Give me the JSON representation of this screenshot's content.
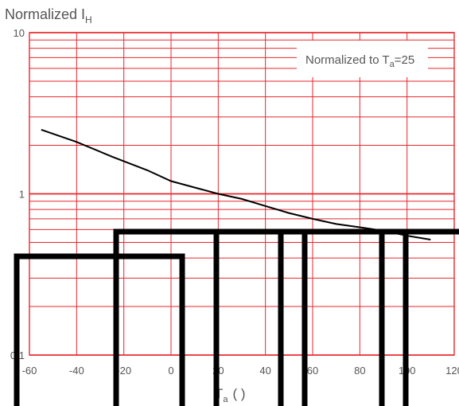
{
  "chart_data": {
    "type": "line",
    "title": "",
    "ylabel": {
      "main": "Normalized I",
      "sub": "H"
    },
    "xlabel": {
      "main": "T",
      "sub": "a",
      "rest": "(   )"
    },
    "x_ticks": [
      {
        "value": -60,
        "label": "-60"
      },
      {
        "value": -40,
        "label": "-40"
      },
      {
        "value": -20,
        "label": "-20"
      },
      {
        "value": 0,
        "label": "0"
      },
      {
        "value": 20,
        "label": "20"
      },
      {
        "value": 40,
        "label": "40"
      },
      {
        "value": 60,
        "label": "60"
      },
      {
        "value": 80,
        "label": "80"
      },
      {
        "value": 100,
        "label": "100"
      },
      {
        "value": 120,
        "label": "120"
      }
    ],
    "y_ticks": [
      {
        "value": 0.1,
        "label": "0.1"
      },
      {
        "value": 1,
        "label": "1"
      },
      {
        "value": 10,
        "label": "10"
      }
    ],
    "xlim": [
      -60,
      120
    ],
    "ylim": [
      0.1,
      10
    ],
    "y_scale": "log",
    "grid": true,
    "legend_box": {
      "main": "Normalized to T",
      "sub": "a",
      "rest": "=25"
    },
    "series": [
      {
        "x": [
          -55,
          -40,
          -25,
          -10,
          0,
          20,
          30,
          40,
          50,
          60,
          70,
          80,
          90,
          100,
          110
        ],
        "y": [
          2.5,
          2.1,
          1.7,
          1.4,
          1.2,
          1.0,
          0.93,
          0.84,
          0.76,
          0.7,
          0.65,
          0.62,
          0.59,
          0.55,
          0.52
        ]
      }
    ],
    "colors": {
      "grid": "#e8262c",
      "curve": "#000000",
      "overlay": "#000000",
      "text": "#555555"
    }
  }
}
